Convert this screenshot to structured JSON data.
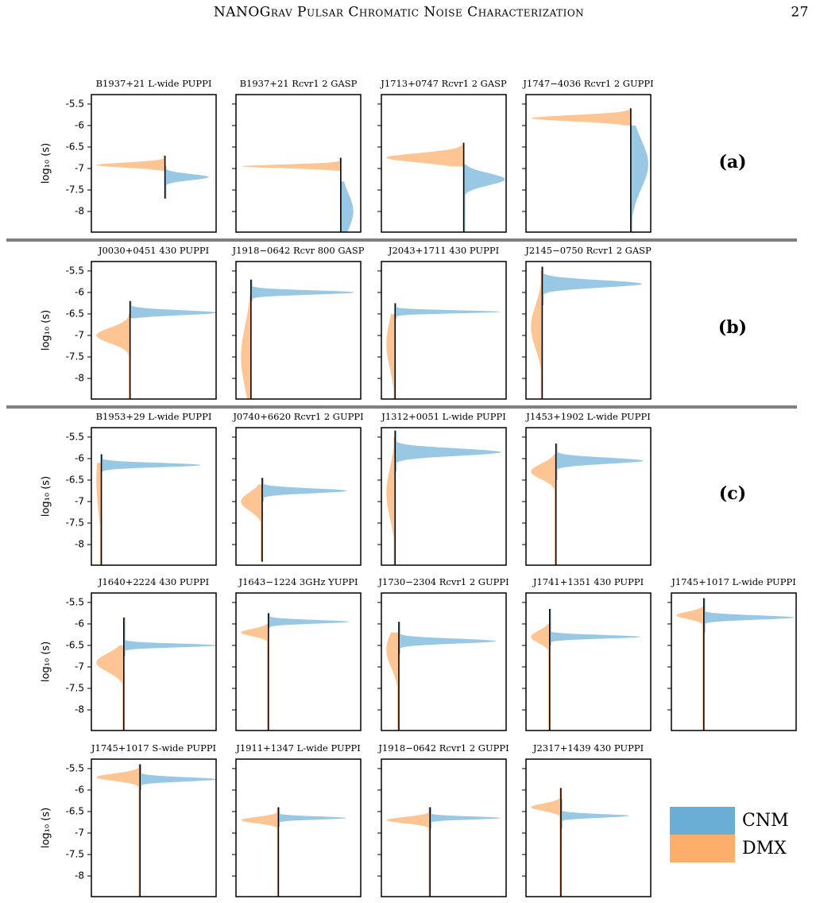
{
  "header": {
    "title": "NANOGrav Pulsar Chromatic Noise Characterization",
    "page": "27"
  },
  "axes": {
    "ylabel": "log₁₀ (s)",
    "ylim": [
      -8.48,
      -5.28
    ],
    "yticks": [
      -5.5,
      -6.0,
      -6.5,
      -7.0,
      -7.5,
      -8.0
    ]
  },
  "row_labels": [
    "(a)",
    "(b)",
    "(c)"
  ],
  "legend": [
    {
      "name": "CNM",
      "color": "#6aaed6"
    },
    {
      "name": "DMX",
      "color": "#fdae6b"
    }
  ],
  "colors": {
    "dmx": "#fdc593",
    "cnm": "#98c8e4"
  },
  "chart_data": [
    {
      "type": "violin",
      "title": "B1937+21 L-wide PUPPI",
      "dmx": {
        "mode": -6.92,
        "width": 0.55,
        "spread": 0.08,
        "top": -6.7,
        "bottom": -7.05
      },
      "cnm": {
        "mode": -7.2,
        "width": 0.35,
        "spread": 0.1,
        "top": -6.95,
        "bottom": -7.7
      }
    },
    {
      "type": "violin",
      "title": "B1937+21 Rcvr1 2 GASP",
      "dmx": {
        "mode": -6.95,
        "width": 0.8,
        "spread": 0.06,
        "top": -6.75,
        "bottom": -7.05
      },
      "cnm": {
        "mode": -8.0,
        "width": 0.1,
        "spread": 0.6,
        "top": -7.3,
        "bottom": -8.48
      }
    },
    {
      "type": "violin",
      "title": "J1713+0747 Rcvr1 2 GASP",
      "dmx": {
        "mode": -6.75,
        "width": 0.62,
        "spread": 0.15,
        "top": -6.4,
        "bottom": -6.95
      },
      "cnm": {
        "mode": -7.25,
        "width": 0.33,
        "spread": 0.2,
        "top": -6.9,
        "bottom": -8.48
      }
    },
    {
      "type": "violin",
      "title": "J1747−4036 Rcvr1 2 GUPPI",
      "dmx": {
        "mode": -5.83,
        "width": 0.8,
        "spread": 0.1,
        "top": -5.6,
        "bottom": -6.0
      },
      "cnm": {
        "mode": -6.9,
        "width": 0.14,
        "spread": 0.8,
        "top": -6.0,
        "bottom": -8.48
      }
    },
    {
      "type": "violin",
      "title": "J0030+0451 430 PUPPI",
      "dmx": {
        "mode": -7.0,
        "width": 0.27,
        "spread": 0.25,
        "top": -6.5,
        "bottom": -8.48
      },
      "cnm": {
        "mode": -6.47,
        "width": 0.7,
        "spread": 0.08,
        "top": -6.2,
        "bottom": -6.6
      }
    },
    {
      "type": "violin",
      "title": "J1918−0642 Rcvr 800 GASP",
      "dmx": {
        "mode": -7.5,
        "width": 0.08,
        "spread": 1.0,
        "top": -6.1,
        "bottom": -8.48
      },
      "cnm": {
        "mode": -6.0,
        "width": 0.83,
        "spread": 0.07,
        "top": -5.7,
        "bottom": -6.2
      }
    },
    {
      "type": "violin",
      "title": "J2043+1711 430 PUPPI",
      "dmx": {
        "mode": -7.2,
        "width": 0.07,
        "spread": 0.8,
        "top": -6.5,
        "bottom": -8.48
      },
      "cnm": {
        "mode": -6.45,
        "width": 0.85,
        "spread": 0.05,
        "top": -6.25,
        "bottom": -6.6
      }
    },
    {
      "type": "violin",
      "title": "J2145−0750 Rcvr1 2 GASP",
      "dmx": {
        "mode": -6.8,
        "width": 0.09,
        "spread": 0.7,
        "top": -5.5,
        "bottom": -8.48
      },
      "cnm": {
        "mode": -5.8,
        "width": 0.8,
        "spread": 0.12,
        "top": -5.4,
        "bottom": -6.3
      }
    },
    {
      "type": "violin",
      "title": "B1953+29 L-wide PUPPI",
      "dmx": {
        "mode": -6.5,
        "width": 0.04,
        "spread": 1.0,
        "top": -6.1,
        "bottom": -8.48
      },
      "cnm": {
        "mode": -6.15,
        "width": 0.8,
        "spread": 0.07,
        "top": -5.9,
        "bottom": -6.3
      }
    },
    {
      "type": "violin",
      "title": "J0740+6620 Rcvr1 2 GUPPI",
      "dmx": {
        "mode": -7.0,
        "width": 0.17,
        "spread": 0.3,
        "top": -6.6,
        "bottom": -8.4
      },
      "cnm": {
        "mode": -6.75,
        "width": 0.68,
        "spread": 0.08,
        "top": -6.45,
        "bottom": -7.0
      }
    },
    {
      "type": "violin",
      "title": "J1312+0051 L-wide PUPPI",
      "dmx": {
        "mode": -6.8,
        "width": 0.07,
        "spread": 0.8,
        "top": -5.5,
        "bottom": -8.48
      },
      "cnm": {
        "mode": -5.85,
        "width": 0.85,
        "spread": 0.12,
        "top": -5.35,
        "bottom": -6.3
      }
    },
    {
      "type": "violin",
      "title": "J1453+1902 L-wide PUPPI",
      "dmx": {
        "mode": -6.3,
        "width": 0.2,
        "spread": 0.25,
        "top": -5.9,
        "bottom": -8.48
      },
      "cnm": {
        "mode": -6.05,
        "width": 0.7,
        "spread": 0.1,
        "top": -5.65,
        "bottom": -6.5
      }
    },
    {
      "type": "violin",
      "title": "J1640+2224 430 PUPPI",
      "dmx": {
        "mode": -6.9,
        "width": 0.22,
        "spread": 0.3,
        "top": -6.5,
        "bottom": -8.48
      },
      "cnm": {
        "mode": -6.5,
        "width": 0.75,
        "spread": 0.06,
        "top": -5.85,
        "bottom": -6.75
      }
    },
    {
      "type": "violin",
      "title": "J1643−1224 3GHz YUPPI",
      "dmx": {
        "mode": -6.2,
        "width": 0.22,
        "spread": 0.12,
        "top": -6.0,
        "bottom": -8.48
      },
      "cnm": {
        "mode": -5.95,
        "width": 0.65,
        "spread": 0.06,
        "top": -5.75,
        "bottom": -6.1
      }
    },
    {
      "type": "violin",
      "title": "J1730−2304 Rcvr1 2 GUPPI",
      "dmx": {
        "mode": -6.6,
        "width": 0.1,
        "spread": 0.6,
        "top": -6.2,
        "bottom": -8.48
      },
      "cnm": {
        "mode": -6.4,
        "width": 0.78,
        "spread": 0.08,
        "top": -5.95,
        "bottom": -6.7
      }
    },
    {
      "type": "violin",
      "title": "J1741+1351 430 PUPPI",
      "dmx": {
        "mode": -6.3,
        "width": 0.15,
        "spread": 0.2,
        "top": -6.0,
        "bottom": -8.48
      },
      "cnm": {
        "mode": -6.3,
        "width": 0.73,
        "spread": 0.06,
        "top": -5.65,
        "bottom": -6.5
      }
    },
    {
      "type": "violin",
      "title": "J1745+1017 L-wide PUPPI",
      "dmx": {
        "mode": -5.8,
        "width": 0.22,
        "spread": 0.12,
        "top": -5.6,
        "bottom": -8.48
      },
      "cnm": {
        "mode": -5.85,
        "width": 0.73,
        "spread": 0.07,
        "top": -5.4,
        "bottom": -6.2
      }
    },
    {
      "type": "violin",
      "title": "J1745+1017 S-wide PUPPI",
      "dmx": {
        "mode": -5.7,
        "width": 0.35,
        "spread": 0.12,
        "top": -5.4,
        "bottom": -8.48
      },
      "cnm": {
        "mode": -5.75,
        "width": 0.62,
        "spread": 0.07,
        "top": -5.4,
        "bottom": -6.0
      }
    },
    {
      "type": "violin",
      "title": "J1911+1347 L-wide PUPPI",
      "dmx": {
        "mode": -6.7,
        "width": 0.3,
        "spread": 0.1,
        "top": -6.4,
        "bottom": -8.48
      },
      "cnm": {
        "mode": -6.65,
        "width": 0.55,
        "spread": 0.05,
        "top": -6.4,
        "bottom": -6.85
      }
    },
    {
      "type": "violin",
      "title": "J1918−0642 Rcvr1 2 GUPPI",
      "dmx": {
        "mode": -6.7,
        "width": 0.35,
        "spread": 0.1,
        "top": -6.4,
        "bottom": -8.48
      },
      "cnm": {
        "mode": -6.65,
        "width": 0.57,
        "spread": 0.05,
        "top": -6.4,
        "bottom": -6.9
      }
    },
    {
      "type": "violin",
      "title": "J2317+1439 430 PUPPI",
      "dmx": {
        "mode": -6.4,
        "width": 0.24,
        "spread": 0.12,
        "top": -5.95,
        "bottom": -8.48
      },
      "cnm": {
        "mode": -6.6,
        "width": 0.55,
        "spread": 0.06,
        "top": -6.2,
        "bottom": -6.9
      }
    }
  ]
}
